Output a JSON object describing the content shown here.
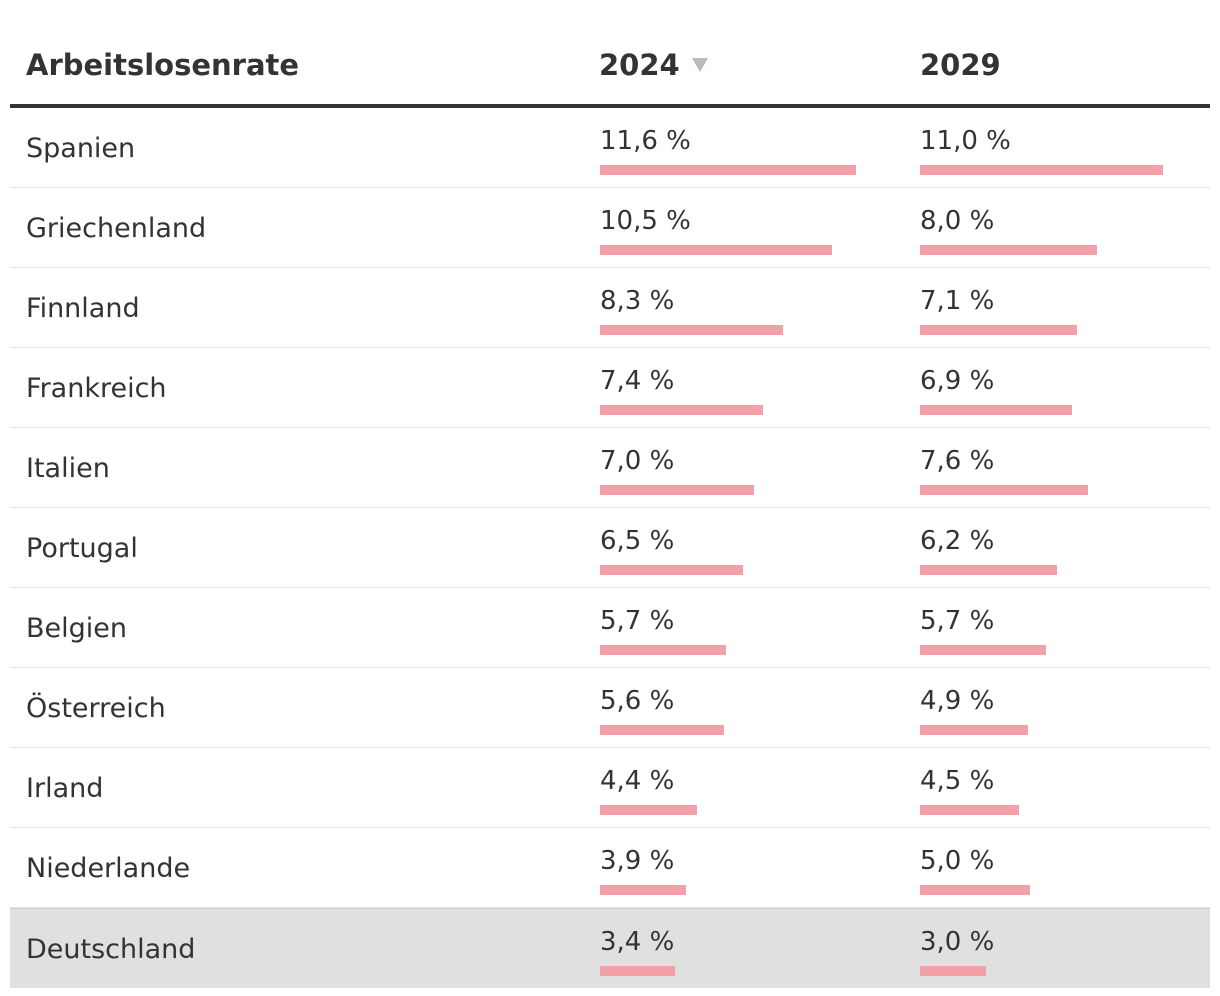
{
  "colors": {
    "bar": "#f4a0a8",
    "text": "#333333",
    "highlight_row": "#e0e0e0",
    "sort_icon": "#bbbbbb"
  },
  "header": {
    "label": "Arbeitslosenrate",
    "col1": "2024",
    "col2": "2029",
    "sort_icon": "triangle-down-icon"
  },
  "chart_data": {
    "type": "table",
    "title": "Arbeitslosenrate",
    "columns": [
      "2024",
      "2029"
    ],
    "unit": "%",
    "max_value": 11.6,
    "highlight": "Deutschland",
    "rows": [
      {
        "country": "Spanien",
        "v2024": 11.6,
        "v2029": 11.0,
        "label2024": "11,6 %",
        "label2029": "11,0 %"
      },
      {
        "country": "Griechenland",
        "v2024": 10.5,
        "v2029": 8.0,
        "label2024": "10,5 %",
        "label2029": "8,0 %"
      },
      {
        "country": "Finnland",
        "v2024": 8.3,
        "v2029": 7.1,
        "label2024": "8,3 %",
        "label2029": "7,1 %"
      },
      {
        "country": "Frankreich",
        "v2024": 7.4,
        "v2029": 6.9,
        "label2024": "7,4 %",
        "label2029": "6,9 %"
      },
      {
        "country": "Italien",
        "v2024": 7.0,
        "v2029": 7.6,
        "label2024": "7,0 %",
        "label2029": "7,6 %"
      },
      {
        "country": "Portugal",
        "v2024": 6.5,
        "v2029": 6.2,
        "label2024": "6,5 %",
        "label2029": "6,2 %"
      },
      {
        "country": "Belgien",
        "v2024": 5.7,
        "v2029": 5.7,
        "label2024": "5,7 %",
        "label2029": "5,7 %"
      },
      {
        "country": "Österreich",
        "v2024": 5.6,
        "v2029": 4.9,
        "label2024": "5,6 %",
        "label2029": "4,9 %"
      },
      {
        "country": "Irland",
        "v2024": 4.4,
        "v2029": 4.5,
        "label2024": "4,4 %",
        "label2029": "4,5 %"
      },
      {
        "country": "Niederlande",
        "v2024": 3.9,
        "v2029": 5.0,
        "label2024": "3,9 %",
        "label2029": "5,0 %"
      },
      {
        "country": "Deutschland",
        "v2024": 3.4,
        "v2029": 3.0,
        "label2024": "3,4 %",
        "label2029": "3,0 %"
      }
    ]
  }
}
